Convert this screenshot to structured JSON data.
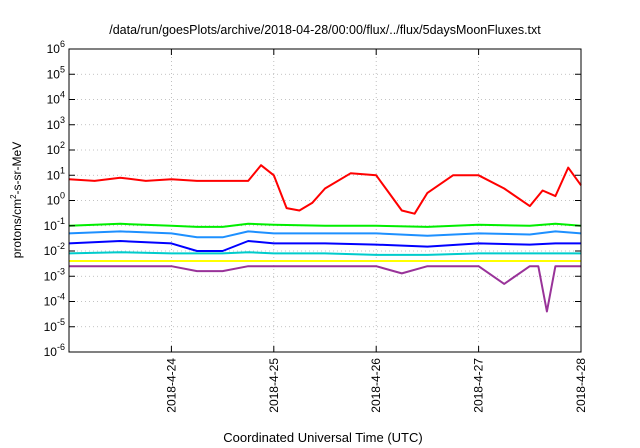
{
  "chart_data": {
    "type": "line",
    "title": "/data/run/goesPlots/archive/2018-04-28/00:00/flux/../flux/5daysMoonFluxes.txt",
    "xlabel": "Coordinated Universal Time (UTC)",
    "ylabel": {
      "base": "protons/cm",
      "exp": "2",
      "rest": "-s-sr-MeV"
    },
    "yscale": "log",
    "ylim": [
      1e-06,
      1000000.0
    ],
    "yticks": [
      {
        "value": 1e-06,
        "base": "10",
        "exp": "-6"
      },
      {
        "value": 1e-05,
        "base": "10",
        "exp": "-5"
      },
      {
        "value": 0.0001,
        "base": "10",
        "exp": "-4"
      },
      {
        "value": 0.001,
        "base": "10",
        "exp": "-3"
      },
      {
        "value": 0.01,
        "base": "10",
        "exp": "-2"
      },
      {
        "value": 0.1,
        "base": "10",
        "exp": "-1"
      },
      {
        "value": 1.0,
        "base": "10",
        "exp": "0"
      },
      {
        "value": 10.0,
        "base": "10",
        "exp": "1"
      },
      {
        "value": 100.0,
        "base": "10",
        "exp": "2"
      },
      {
        "value": 1000.0,
        "base": "10",
        "exp": "3"
      },
      {
        "value": 10000.0,
        "base": "10",
        "exp": "4"
      },
      {
        "value": 100000.0,
        "base": "10",
        "exp": "5"
      },
      {
        "value": 1000000.0,
        "base": "10",
        "exp": "6"
      }
    ],
    "xlim": [
      "2018-04-23 00:00",
      "2018-04-28 00:00"
    ],
    "xticks": [
      "2018-4-24",
      "2018-4-25",
      "2018-4-26",
      "2018-4-27",
      "2018-4-28"
    ],
    "grid": true,
    "legend": "none",
    "series": [
      {
        "color": "#ff0000",
        "x": [
          "2018-04-23 00:00",
          "2018-04-23 06:00",
          "2018-04-23 12:00",
          "2018-04-23 18:00",
          "2018-04-24 00:00",
          "2018-04-24 06:00",
          "2018-04-24 12:00",
          "2018-04-24 18:00",
          "2018-04-24 21:00",
          "2018-04-25 00:00",
          "2018-04-25 03:00",
          "2018-04-25 06:00",
          "2018-04-25 09:00",
          "2018-04-25 12:00",
          "2018-04-25 18:00",
          "2018-04-26 00:00",
          "2018-04-26 03:00",
          "2018-04-26 06:00",
          "2018-04-26 09:00",
          "2018-04-26 12:00",
          "2018-04-26 18:00",
          "2018-04-27 00:00",
          "2018-04-27 06:00",
          "2018-04-27 12:00",
          "2018-04-27 15:00",
          "2018-04-27 18:00",
          "2018-04-27 21:00",
          "2018-04-28 00:00"
        ],
        "y": [
          7,
          6,
          8,
          6,
          7,
          6,
          6,
          6,
          25,
          10,
          0.5,
          0.4,
          0.8,
          3,
          12,
          10,
          2,
          0.4,
          0.3,
          2,
          10,
          10,
          3,
          0.6,
          2.5,
          1.5,
          20,
          4
        ]
      },
      {
        "color": "#00ee00",
        "x": [
          "2018-04-23 00:00",
          "2018-04-23 12:00",
          "2018-04-24 00:00",
          "2018-04-24 06:00",
          "2018-04-24 12:00",
          "2018-04-24 18:00",
          "2018-04-25 00:00",
          "2018-04-25 12:00",
          "2018-04-26 00:00",
          "2018-04-26 12:00",
          "2018-04-27 00:00",
          "2018-04-27 12:00",
          "2018-04-27 18:00",
          "2018-04-28 00:00"
        ],
        "y": [
          0.1,
          0.12,
          0.1,
          0.09,
          0.09,
          0.12,
          0.11,
          0.1,
          0.1,
          0.09,
          0.11,
          0.1,
          0.12,
          0.1
        ]
      },
      {
        "color": "#1e90ff",
        "x": [
          "2018-04-23 00:00",
          "2018-04-23 12:00",
          "2018-04-24 00:00",
          "2018-04-24 06:00",
          "2018-04-24 12:00",
          "2018-04-24 18:00",
          "2018-04-25 00:00",
          "2018-04-25 12:00",
          "2018-04-26 00:00",
          "2018-04-26 12:00",
          "2018-04-27 00:00",
          "2018-04-27 12:00",
          "2018-04-27 18:00",
          "2018-04-28 00:00"
        ],
        "y": [
          0.05,
          0.06,
          0.05,
          0.035,
          0.035,
          0.06,
          0.05,
          0.05,
          0.05,
          0.04,
          0.05,
          0.045,
          0.06,
          0.05
        ]
      },
      {
        "color": "#0000ff",
        "x": [
          "2018-04-23 00:00",
          "2018-04-23 12:00",
          "2018-04-24 00:00",
          "2018-04-24 06:00",
          "2018-04-24 12:00",
          "2018-04-24 18:00",
          "2018-04-25 00:00",
          "2018-04-25 12:00",
          "2018-04-26 00:00",
          "2018-04-26 12:00",
          "2018-04-27 00:00",
          "2018-04-27 12:00",
          "2018-04-27 18:00",
          "2018-04-28 00:00"
        ],
        "y": [
          0.02,
          0.025,
          0.02,
          0.01,
          0.01,
          0.025,
          0.02,
          0.02,
          0.018,
          0.015,
          0.02,
          0.018,
          0.02,
          0.02
        ]
      },
      {
        "color": "#00cccc",
        "x": [
          "2018-04-23 00:00",
          "2018-04-23 12:00",
          "2018-04-24 00:00",
          "2018-04-24 06:00",
          "2018-04-24 12:00",
          "2018-04-24 18:00",
          "2018-04-25 00:00",
          "2018-04-25 12:00",
          "2018-04-26 00:00",
          "2018-04-26 12:00",
          "2018-04-27 00:00",
          "2018-04-27 12:00",
          "2018-04-27 18:00",
          "2018-04-28 00:00"
        ],
        "y": [
          0.008,
          0.009,
          0.008,
          0.008,
          0.008,
          0.009,
          0.008,
          0.008,
          0.007,
          0.007,
          0.008,
          0.008,
          0.008,
          0.008
        ]
      },
      {
        "color": "#ffff00",
        "x": [
          "2018-04-23 00:00",
          "2018-04-23 12:00",
          "2018-04-24 00:00",
          "2018-04-24 06:00",
          "2018-04-24 12:00",
          "2018-04-24 18:00",
          "2018-04-25 00:00",
          "2018-04-25 12:00",
          "2018-04-26 00:00",
          "2018-04-26 12:00",
          "2018-04-27 00:00",
          "2018-04-27 12:00",
          "2018-04-27 18:00",
          "2018-04-28 00:00"
        ],
        "y": [
          0.004,
          0.004,
          0.004,
          0.004,
          0.004,
          0.004,
          0.004,
          0.004,
          0.004,
          0.004,
          0.004,
          0.004,
          0.004,
          0.004
        ]
      },
      {
        "color": "#993399",
        "x": [
          "2018-04-23 00:00",
          "2018-04-23 12:00",
          "2018-04-24 00:00",
          "2018-04-24 06:00",
          "2018-04-24 12:00",
          "2018-04-24 18:00",
          "2018-04-25 00:00",
          "2018-04-25 12:00",
          "2018-04-26 00:00",
          "2018-04-26 06:00",
          "2018-04-26 12:00",
          "2018-04-27 00:00",
          "2018-04-27 06:00",
          "2018-04-27 12:00",
          "2018-04-27 14:00",
          "2018-04-27 16:00",
          "2018-04-27 18:00",
          "2018-04-28 00:00"
        ],
        "y": [
          0.0025,
          0.0025,
          0.0025,
          0.0016,
          0.0016,
          0.0025,
          0.0025,
          0.0025,
          0.0025,
          0.0013,
          0.0025,
          0.0025,
          0.0005,
          0.0025,
          0.0025,
          4e-05,
          0.0025,
          0.0025
        ]
      }
    ]
  }
}
